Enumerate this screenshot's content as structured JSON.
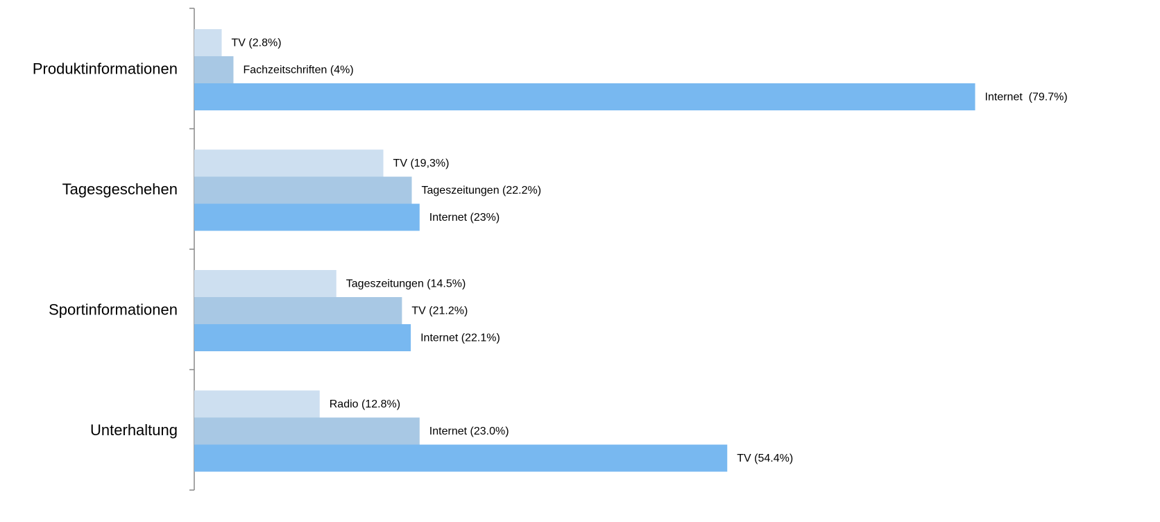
{
  "chart_data": {
    "type": "barh",
    "categories": [
      "Produktinformationen",
      "Tagesgeschehen",
      "Sportinformationen",
      "Unterhaltung"
    ],
    "series": [
      {
        "color": "#cddff0",
        "values": [
          2.8,
          19.3,
          14.5,
          12.8
        ],
        "value_labels": [
          "TV (2.8%)",
          "TV (19,3%)",
          "Tageszeitungen (14.5%)",
          "Radio (12.8%)"
        ]
      },
      {
        "color": "#a8c8e4",
        "values": [
          4,
          22.2,
          21.2,
          23.0
        ],
        "value_labels": [
          "Fachzeitschriften (4%)",
          "Tageszeitungen (22.2%)",
          "TV (21.2%)",
          "Internet (23.0%)"
        ]
      },
      {
        "color": "#78b8f0",
        "values": [
          79.7,
          23,
          22.1,
          54.4
        ],
        "value_labels": [
          "Internet  (79.7%)",
          "Internet (23%)",
          "Internet (22.1%)",
          "TV (54.4%)"
        ]
      }
    ],
    "xlim": [
      0,
      90
    ]
  }
}
